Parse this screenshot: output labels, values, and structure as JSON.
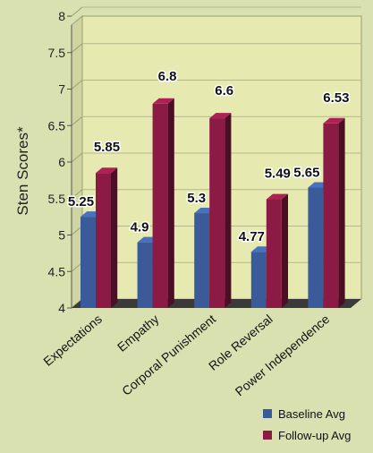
{
  "chart_data": {
    "type": "bar",
    "categories": [
      "Expectations",
      "Empathy",
      "Corporal Punishment",
      "Role Reversal",
      "Power Independence"
    ],
    "series": [
      {
        "name": "Baseline Avg",
        "values": [
          5.25,
          4.9,
          5.3,
          4.77,
          5.65
        ],
        "labels": [
          "5.25",
          "4.9",
          "5.3",
          "4.77",
          "5.65"
        ],
        "color": "#3a5a9a"
      },
      {
        "name": "Follow-up Avg",
        "values": [
          5.85,
          6.8,
          6.6,
          5.49,
          6.53
        ],
        "labels": [
          "5.85",
          "6.8",
          "6.6",
          "5.49",
          "6.53"
        ],
        "color": "#8b1a44"
      }
    ],
    "ylabel": "Sten Scores*",
    "xlabel": "",
    "ylim": [
      4,
      8
    ],
    "yticks": [
      "4",
      "4.5",
      "5",
      "5.5",
      "6",
      "6.5",
      "7",
      "7.5",
      "8"
    ],
    "grid": true,
    "legend": "bottom-right",
    "plot_background": "#e6eab0",
    "page_background": "#d9e1b1"
  }
}
